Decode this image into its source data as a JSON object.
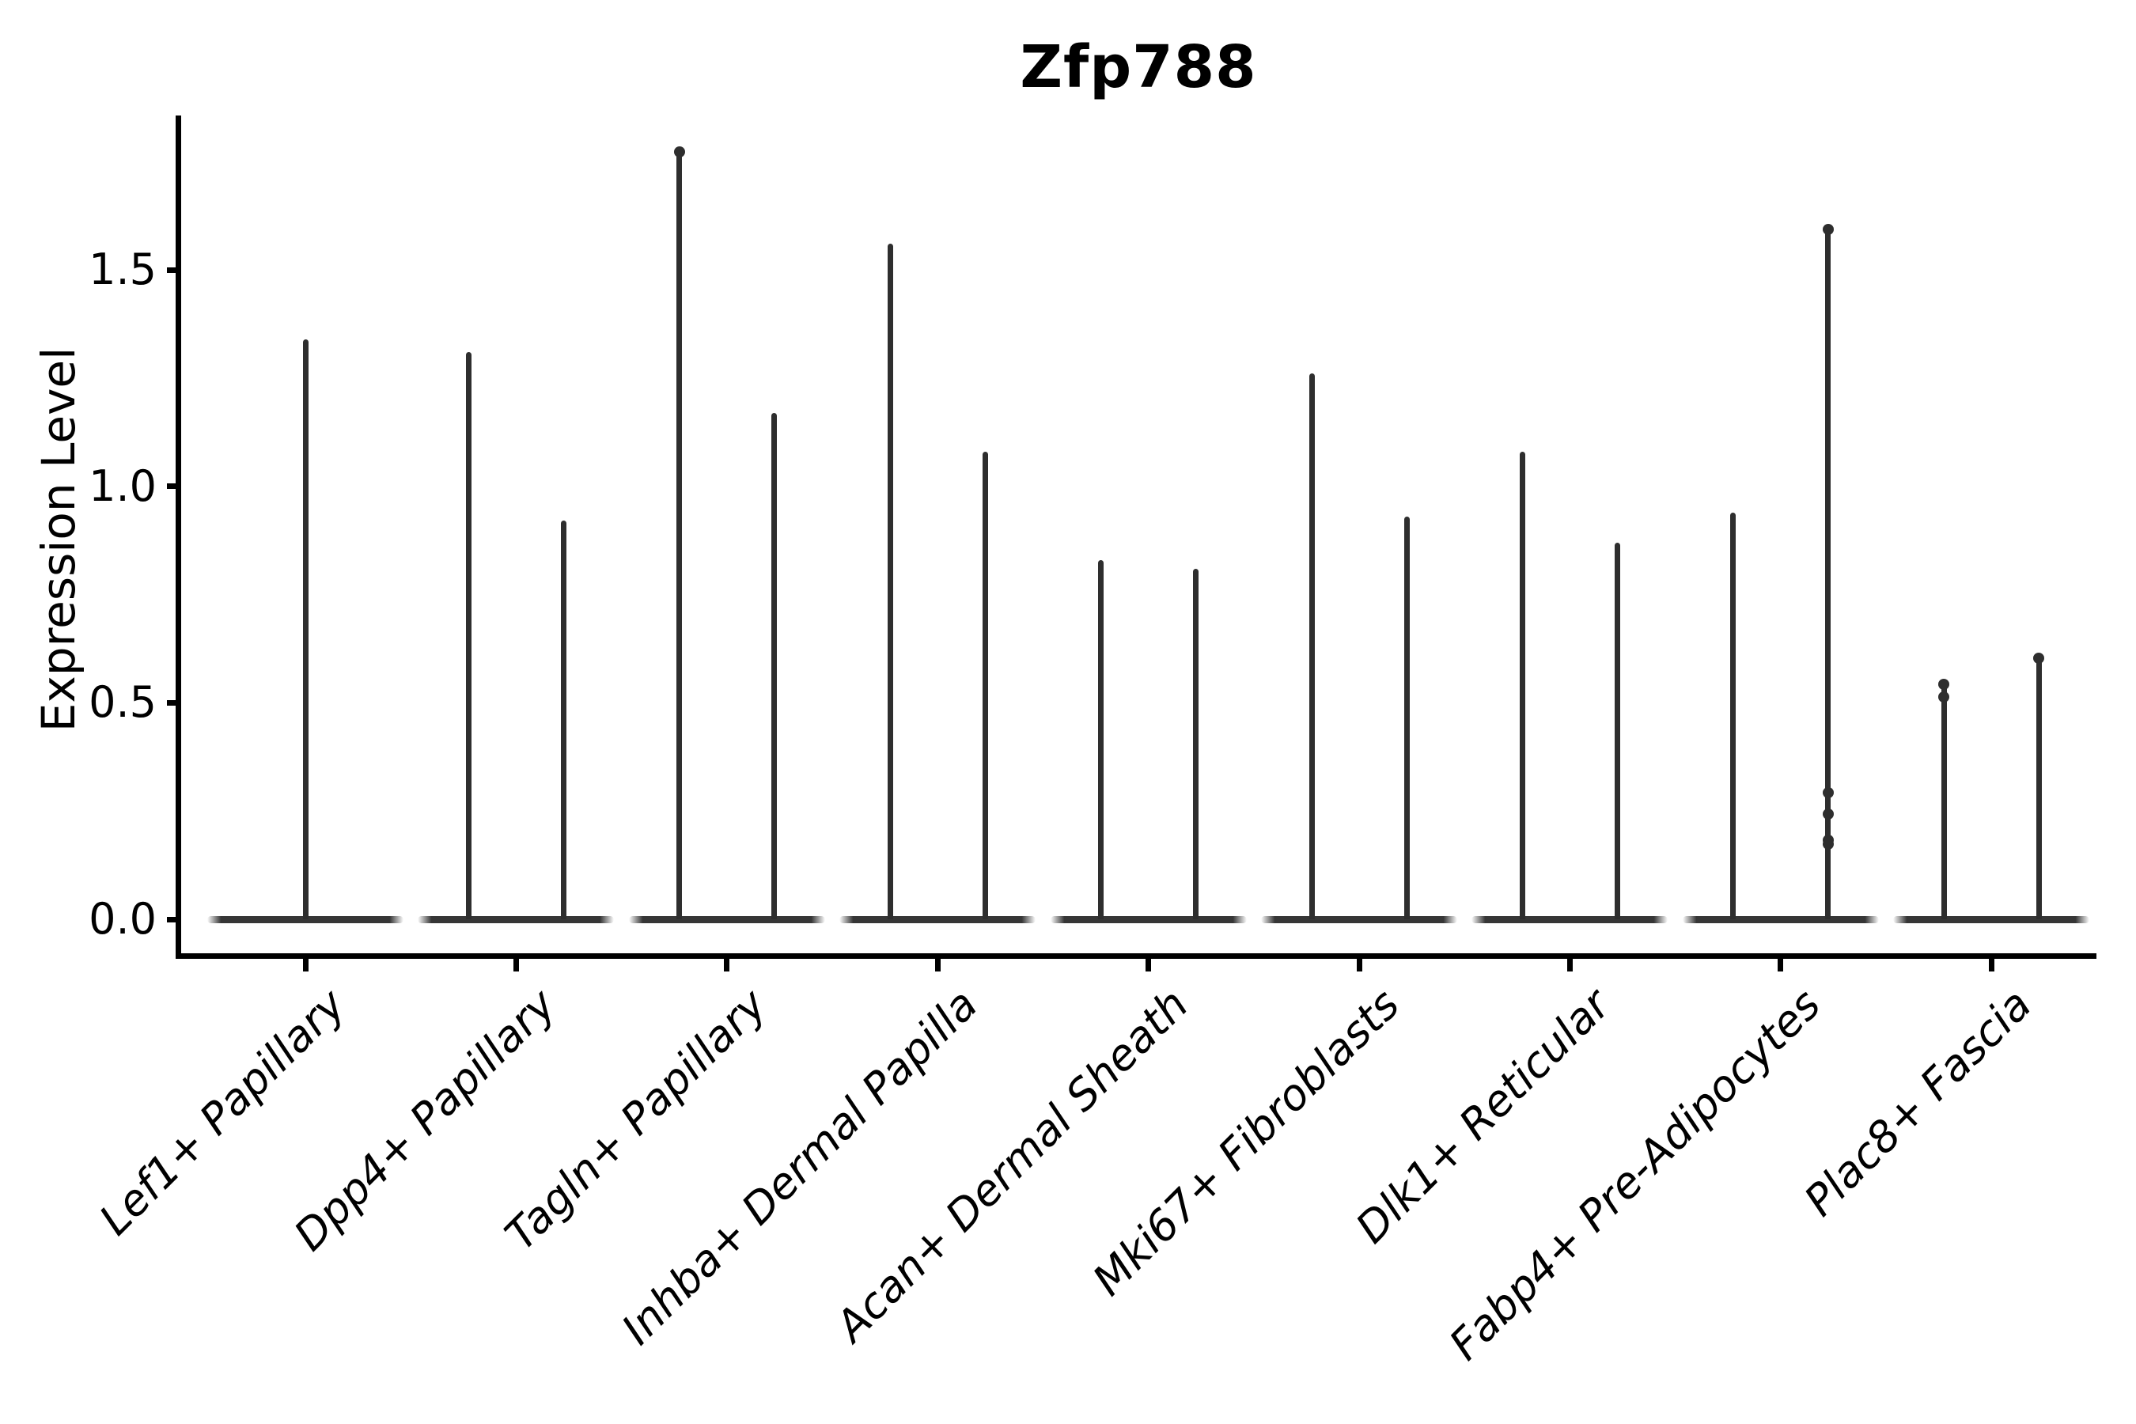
{
  "title": "Zfp788",
  "y_axis": {
    "label": "Expression Level",
    "tick_labels": [
      "1.5",
      "1.0",
      "0.5",
      "0.0"
    ]
  },
  "colors": {
    "violin_stroke": "#2e2e2e",
    "violin_base": "#363636",
    "axis": "#000000",
    "background": "#ffffff"
  },
  "chart_data": {
    "type": "violin",
    "title": "Zfp788",
    "xlabel": "",
    "ylabel": "Expression Level",
    "ylim": [
      -0.084,
      1.857
    ],
    "yticks": [
      0.0,
      0.5,
      1.0,
      1.5
    ],
    "grid": false,
    "legend": "none",
    "description": "Single-cell expression violin plot; violins collapse to a flat base at 0 with a thin spike reaching the maximum expression value. First category has one violin; all others have a left and right violin.",
    "categories": [
      "Lef1+ Papillary",
      "Dpp4+ Papillary",
      "Tagln+ Papillary",
      "Inhba+ Dermal Papilla",
      "Acan+ Dermal Sheath",
      "Mki67+ Fibroblasts",
      "Dlk1+ Reticular",
      "Fabp4+ Pre-Adipocytes",
      "Plac8+ Fascia"
    ],
    "series": [
      {
        "category": "Lef1+ Papillary",
        "violins": [
          {
            "pos": "center",
            "max": 1.34,
            "dots": []
          }
        ]
      },
      {
        "category": "Dpp4+ Papillary",
        "violins": [
          {
            "pos": "left",
            "max": 1.31,
            "dots": []
          },
          {
            "pos": "right",
            "max": 0.92,
            "dots": []
          }
        ]
      },
      {
        "category": "Tagln+ Papillary",
        "violins": [
          {
            "pos": "left",
            "max": 1.78,
            "dots": [
              1.78
            ]
          },
          {
            "pos": "right",
            "max": 1.17,
            "dots": []
          }
        ]
      },
      {
        "category": "Inhba+ Dermal Papilla",
        "violins": [
          {
            "pos": "left",
            "max": 1.56,
            "dots": []
          },
          {
            "pos": "right",
            "max": 1.08,
            "dots": []
          }
        ]
      },
      {
        "category": "Acan+ Dermal Sheath",
        "violins": [
          {
            "pos": "left",
            "max": 0.83,
            "dots": []
          },
          {
            "pos": "right",
            "max": 0.81,
            "dots": []
          }
        ]
      },
      {
        "category": "Mki67+ Fibroblasts",
        "violins": [
          {
            "pos": "left",
            "max": 1.26,
            "dots": []
          },
          {
            "pos": "right",
            "max": 0.93,
            "dots": []
          }
        ]
      },
      {
        "category": "Dlk1+ Reticular",
        "violins": [
          {
            "pos": "left",
            "max": 1.08,
            "dots": []
          },
          {
            "pos": "right",
            "max": 0.87,
            "dots": []
          }
        ]
      },
      {
        "category": "Fabp4+ Pre-Adipocytes",
        "violins": [
          {
            "pos": "left",
            "max": 0.94,
            "dots": []
          },
          {
            "pos": "right",
            "max": 1.6,
            "dots": [
              1.6,
              0.3,
              0.25,
              0.19,
              0.18
            ]
          }
        ]
      },
      {
        "category": "Plac8+ Fascia",
        "violins": [
          {
            "pos": "left",
            "max": 0.55,
            "dots": [
              0.55,
              0.52
            ]
          },
          {
            "pos": "right",
            "max": 0.61,
            "dots": [
              0.61
            ]
          }
        ]
      }
    ]
  }
}
